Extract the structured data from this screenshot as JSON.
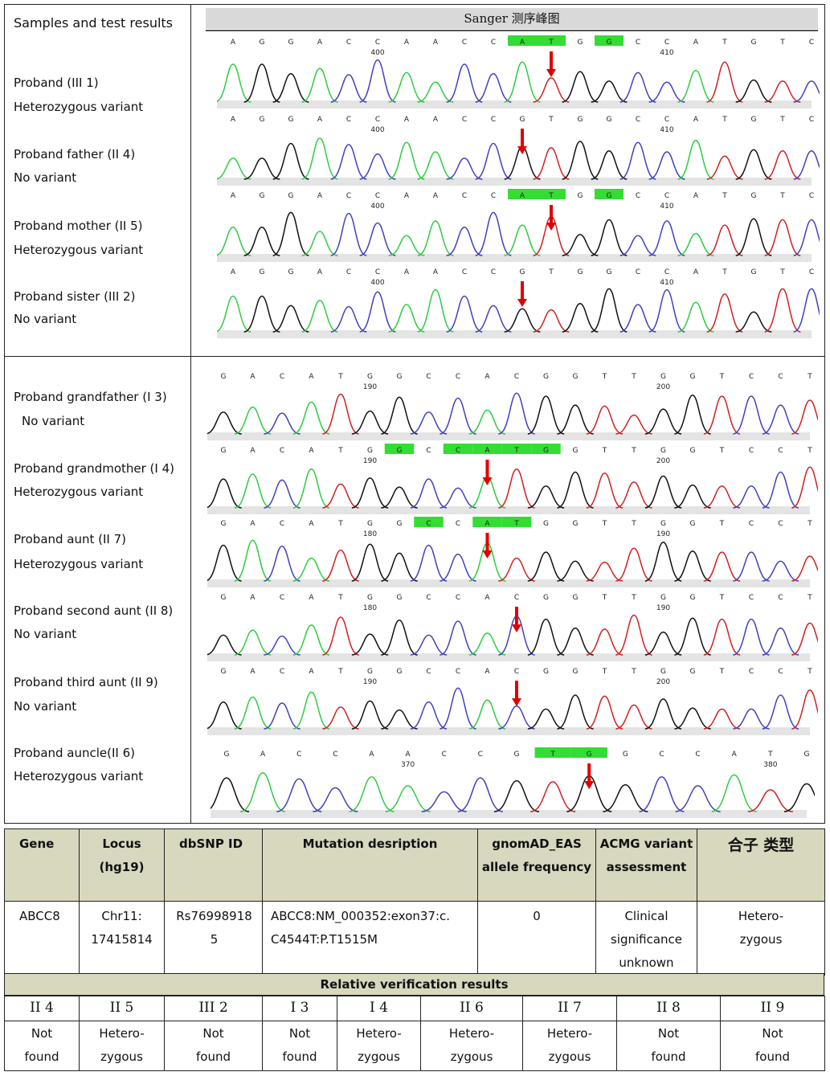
{
  "panel_header": "Samples and test results",
  "trace_title": "Sanger 测序峰图",
  "top_samples": [
    {
      "name": "Proband (III 1)",
      "result": "Heterozygous variant"
    },
    {
      "name": "Proband father (II 4)",
      "result": "No variant"
    },
    {
      "name": "Proband mother (II 5)",
      "result": "Heterozygous variant"
    },
    {
      "name": "Proband sister (III 2)",
      "result": "No variant"
    }
  ],
  "bottom_samples": [
    {
      "name": "Proband grandfather (I 3)",
      "result": "No variant"
    },
    {
      "name": "Proband grandmother (I 4)",
      "result": "Heterozygous variant"
    },
    {
      "name": "Proband aunt (II 7)",
      "result": "Heterozygous variant"
    },
    {
      "name": "Proband second aunt (II 8)",
      "result": "No variant"
    },
    {
      "name": "Proband third aunt (II 9)",
      "result": "No variant"
    },
    {
      "name": "Proband auncle(II 6)",
      "result": "Heterozygous variant"
    }
  ],
  "traces_top": [
    {
      "bases": "AGGACCAACCATGGCCATGTC",
      "hl": [
        10,
        11,
        13
      ],
      "pos1": "400",
      "pos2": "410",
      "arrow": true
    },
    {
      "bases": "AGGACCAACCGTGGCCATGTC",
      "hl": [],
      "pos1": "400",
      "pos2": "410",
      "arrow": true
    },
    {
      "bases": "AGGACCAACCATGGCCATGTC",
      "hl": [
        10,
        11,
        13
      ],
      "pos1": "400",
      "pos2": "410",
      "arrow": true
    },
    {
      "bases": "AGGACCAACCGTGGCCATGTC",
      "hl": [],
      "pos1": "400",
      "pos2": "410",
      "arrow": true
    }
  ],
  "traces_bottom": [
    {
      "bases": "GACATGGCCACGGTTGGTCCT",
      "hl": [],
      "pos1": "190",
      "pos2": "200",
      "arrow": false
    },
    {
      "bases": "GACATGGCCATGGTTGGTCCT",
      "hl": [
        6,
        8,
        9,
        10,
        11
      ],
      "pos1": "190",
      "pos2": "200",
      "arrow": true
    },
    {
      "bases": "GACATGGCCATGGTTGGTCCT",
      "hl": [
        7,
        9,
        10
      ],
      "pos1": "180",
      "pos2": "190",
      "arrow": true
    },
    {
      "bases": "GACATGGCCACGGTTGGTCCT",
      "hl": [],
      "pos1": "180",
      "pos2": "190",
      "arrow": true
    },
    {
      "bases": "GACATGGCCACGGTTGGTCCT",
      "hl": [],
      "pos1": "190",
      "pos2": "200",
      "arrow": true
    },
    {
      "bases": "GACCAACCGTGGCCATG",
      "hl": [
        9,
        10
      ],
      "pos1": "370",
      "pos2": "380",
      "arrow": true
    }
  ],
  "table": {
    "headers": [
      "Gene",
      "Locus (hg19)",
      "dbSNP ID",
      "Mutation desription",
      "gnomAD_EAS allele frequency",
      "ACMG variant assessment",
      "合子 类型"
    ],
    "row": [
      "ABCC8",
      "Chr11: 17415814",
      "Rs76998918 5",
      "ABCC8:NM_000352:exon37:c. C4544T:P.T1515M",
      "0",
      "Clinical significance unknown",
      "Hetero- zygous"
    ]
  },
  "relative": {
    "title": "Relative verification results",
    "members": [
      "II 4",
      "II 5",
      "III 2",
      "I 3",
      "I 4",
      "II 6",
      "II 7",
      "II 8",
      "II 9"
    ],
    "results": [
      "Not found",
      "Hetero- zygous",
      "Not found",
      "Not found",
      "Hetero- zygous",
      "Hetero- zygous",
      "Hetero- zygous",
      "Not found",
      "Not found"
    ]
  },
  "colors": {
    "A": "#2ecc40",
    "C": "#4040c0",
    "G": "#111111",
    "T": "#d02020",
    "highlight": "#33dd33",
    "arrow": "#e00000"
  }
}
